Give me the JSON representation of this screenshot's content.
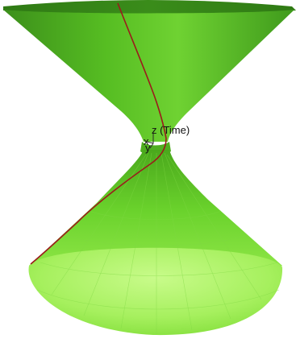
{
  "axes": {
    "z_label": "z (Time)",
    "x_label": "x",
    "y_label": "y"
  },
  "colors": {
    "surface_dark": "#3f9a1c",
    "surface_mid": "#58c21f",
    "surface_light": "#a4f060",
    "base_light": "#bdf77a",
    "curve": "#9b1b1b",
    "axis_line": "#2a2a2a"
  }
}
